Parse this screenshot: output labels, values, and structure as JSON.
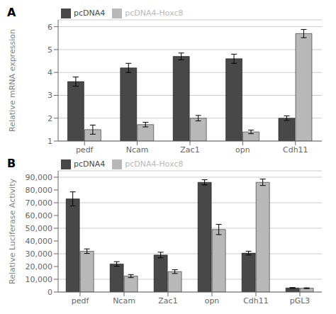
{
  "chart_data": [
    {
      "type": "bar",
      "title": "A",
      "categories": [
        "pedf",
        "Ncam",
        "Zac1",
        "opn",
        "Cdh11"
      ],
      "series": [
        {
          "name": "pcDNA4",
          "color": "#484848",
          "values": [
            3.6,
            4.2,
            4.7,
            4.6,
            2.0
          ],
          "errors": [
            0.2,
            0.2,
            0.15,
            0.2,
            0.1
          ]
        },
        {
          "name": "pcDNA4-Hoxc8",
          "color": "#b8b8b8",
          "values": [
            1.5,
            1.72,
            2.0,
            1.4,
            5.7
          ],
          "errors": [
            0.2,
            0.1,
            0.12,
            0.08,
            0.18
          ]
        }
      ],
      "ylabel": "Relative mRNA expression",
      "ylim": [
        1,
        6.3
      ],
      "yticks": [
        1,
        2,
        3,
        4,
        5,
        6
      ],
      "grid": true,
      "legend": "upper left"
    },
    {
      "type": "bar",
      "title": "B",
      "categories": [
        "pedf",
        "Ncam",
        "Zac1",
        "opn",
        "Cdh11",
        "pGL3"
      ],
      "series": [
        {
          "name": "pcDNA4",
          "color": "#484848",
          "values": [
            73000,
            22000,
            29000,
            86000,
            30500,
            3200
          ],
          "errors": [
            5500,
            1800,
            2200,
            2000,
            1500,
            300
          ]
        },
        {
          "name": "pcDNA4-Hoxc8",
          "color": "#b8b8b8",
          "values": [
            32000,
            12500,
            16000,
            49000,
            86000,
            3000
          ],
          "errors": [
            1800,
            1200,
            1500,
            4000,
            2500,
            300
          ]
        }
      ],
      "ylabel": "Relative Luciferase Activity",
      "ylim": [
        0,
        95000
      ],
      "yticks": [
        0,
        {
          "value": 10000,
          "label": "10,000"
        },
        {
          "value": 20000,
          "label": "20,000"
        },
        {
          "value": 30000,
          "label": "30,000"
        },
        {
          "value": 40000,
          "label": "40,000"
        },
        {
          "value": 50000,
          "label": "50,000"
        },
        {
          "value": 60000,
          "label": "60,000"
        },
        {
          "value": 70000,
          "label": "70,000"
        },
        {
          "value": 80000,
          "label": "80,000"
        },
        {
          "value": 90000,
          "label": "90,000"
        }
      ],
      "grid": true,
      "legend": "upper left"
    }
  ]
}
